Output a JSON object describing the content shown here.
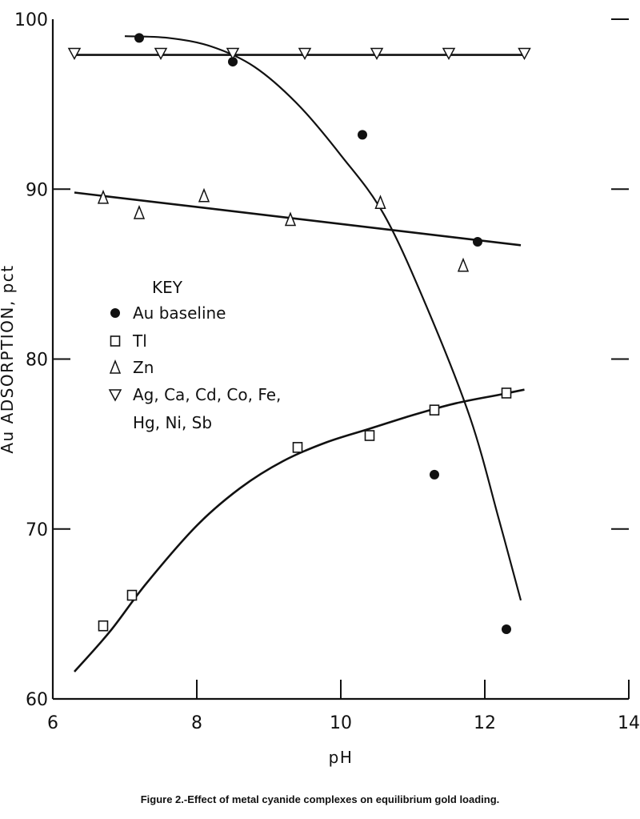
{
  "chart_data": {
    "type": "scatter",
    "xlabel": "pH",
    "ylabel": "Au ADSORPTION, pct",
    "xlim": [
      6,
      14
    ],
    "ylim": [
      60,
      100
    ],
    "x_ticks": [
      6,
      8,
      10,
      12,
      14
    ],
    "y_ticks": [
      60,
      70,
      80,
      90,
      100
    ],
    "grid": false,
    "legend_title": "KEY",
    "legend_position": "left-middle",
    "caption": "Figure 2.-Effect of metal cyanide complexes on equilibrium gold loading.",
    "series": [
      {
        "name": "Au baseline",
        "marker": "filled-circle",
        "points": [
          [
            7.2,
            98.9
          ],
          [
            8.5,
            97.5
          ],
          [
            10.3,
            93.2
          ],
          [
            11.9,
            86.9
          ],
          [
            11.3,
            73.2
          ],
          [
            12.3,
            64.1
          ]
        ],
        "fit": [
          [
            7.0,
            99.0
          ],
          [
            7.6,
            98.9
          ],
          [
            8.2,
            98.4
          ],
          [
            8.8,
            97.2
          ],
          [
            9.4,
            95.0
          ],
          [
            10.0,
            92.0
          ],
          [
            10.6,
            88.5
          ],
          [
            11.2,
            83.0
          ],
          [
            11.8,
            76.5
          ],
          [
            12.2,
            70.5
          ],
          [
            12.5,
            65.8
          ]
        ]
      },
      {
        "name": "Tl",
        "marker": "open-square",
        "points": [
          [
            6.7,
            64.3
          ],
          [
            7.1,
            66.1
          ],
          [
            9.4,
            74.8
          ],
          [
            10.4,
            75.5
          ],
          [
            11.3,
            77.0
          ],
          [
            12.3,
            78.0
          ]
        ],
        "fit": [
          [
            6.3,
            61.6
          ],
          [
            6.8,
            64.0
          ],
          [
            7.3,
            66.8
          ],
          [
            8.0,
            70.2
          ],
          [
            8.6,
            72.4
          ],
          [
            9.2,
            74.0
          ],
          [
            9.8,
            75.1
          ],
          [
            10.4,
            75.9
          ],
          [
            11.0,
            76.7
          ],
          [
            11.6,
            77.4
          ],
          [
            12.2,
            77.9
          ],
          [
            12.55,
            78.2
          ]
        ]
      },
      {
        "name": "Zn",
        "marker": "open-triangle-up",
        "points": [
          [
            6.7,
            89.5
          ],
          [
            7.2,
            88.6
          ],
          [
            8.1,
            89.6
          ],
          [
            9.3,
            88.2
          ],
          [
            10.55,
            89.2
          ],
          [
            11.7,
            85.5
          ]
        ],
        "fit": [
          [
            6.3,
            89.8
          ],
          [
            12.5,
            86.7
          ]
        ]
      },
      {
        "name": "Ag, Ca, Cd, Co, Fe, Hg, Ni, Sb",
        "legend_lines": [
          "Ag, Ca, Cd, Co, Fe,",
          "Hg, Ni, Sb"
        ],
        "marker": "open-triangle-down",
        "points": [
          [
            6.3,
            98.0
          ],
          [
            7.5,
            98.0
          ],
          [
            8.5,
            98.0
          ],
          [
            9.5,
            98.0
          ],
          [
            10.5,
            98.0
          ],
          [
            11.5,
            98.0
          ],
          [
            12.55,
            98.0
          ]
        ],
        "fit": [
          [
            6.3,
            97.9
          ],
          [
            12.55,
            97.9
          ]
        ]
      }
    ]
  }
}
